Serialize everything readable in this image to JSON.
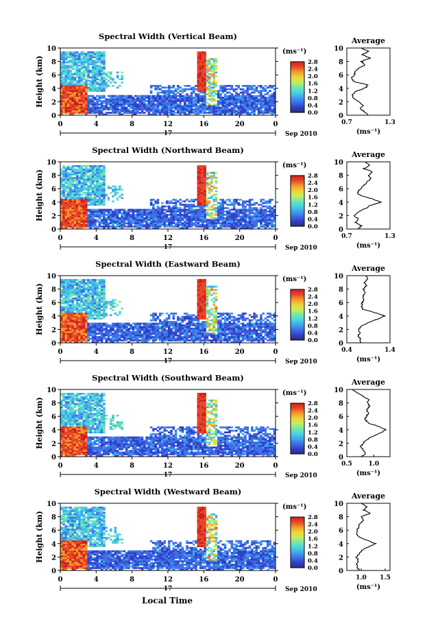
{
  "figure": {
    "x_label": "Local Time",
    "date_text": "Sep 2010",
    "day_label": "17",
    "y_label": "Height (km)",
    "cbar_unit_label": "(ms⁻¹)",
    "avg_title": "Average",
    "avg_xlabel": "(ms⁻¹)",
    "colormap": [
      "#2b2f7a",
      "#3040c8",
      "#3f6fe6",
      "#3fa6ee",
      "#48d6e0",
      "#7ae6a8",
      "#c6ee5a",
      "#f0d23a",
      "#f49a28",
      "#e8462a",
      "#cc1f1f"
    ]
  },
  "chart_data": [
    {
      "type": "heatmap",
      "title": "Spectral Width (Vertical Beam)",
      "xlabel": "",
      "ylabel": "Height (km)",
      "xlim": [
        0,
        24
      ],
      "ylim": [
        0,
        10
      ],
      "x_ticks": [
        "0",
        "4",
        "8",
        "12",
        "16",
        "20",
        "0"
      ],
      "y_ticks": [
        "0",
        "2",
        "4",
        "6",
        "8",
        "10"
      ],
      "colorbar": {
        "range": [
          0,
          2.8
        ],
        "ticks": [
          "2.8",
          "2.4",
          "2.0",
          "1.6",
          "1.2",
          "0.8",
          "0.4",
          "0.0"
        ]
      },
      "average_profile": {
        "xlim": [
          0.7,
          1.3
        ],
        "x_ticks": [
          "0.7",
          "1.3"
        ],
        "height": [
          0,
          0.5,
          1,
          1.5,
          2,
          2.5,
          3,
          3.5,
          4,
          4.5,
          5,
          5.5,
          6,
          6.5,
          7,
          7.5,
          8,
          8.5,
          9,
          9.5,
          10
        ],
        "width": [
          1.0,
          0.95,
          0.88,
          0.93,
          0.86,
          0.8,
          0.78,
          0.82,
          0.95,
          1.0,
          0.8,
          0.76,
          0.8,
          0.82,
          0.86,
          0.96,
          0.9,
          1.02,
          0.92,
          1.0,
          0.9
        ]
      }
    },
    {
      "type": "heatmap",
      "title": "Spectral Width (Northward Beam)",
      "xlabel": "",
      "ylabel": "Height (km)",
      "xlim": [
        0,
        24
      ],
      "ylim": [
        0,
        10
      ],
      "x_ticks": [
        "0",
        "4",
        "8",
        "12",
        "16",
        "20",
        "0"
      ],
      "y_ticks": [
        "0",
        "2",
        "4",
        "6",
        "8",
        "10"
      ],
      "colorbar": {
        "range": [
          0,
          2.8
        ],
        "ticks": [
          "2.8",
          "2.4",
          "2.0",
          "1.6",
          "1.2",
          "0.8",
          "0.4",
          "0.0"
        ]
      },
      "average_profile": {
        "xlim": [
          0.7,
          1.3
        ],
        "x_ticks": [
          "0.7",
          "1.3"
        ],
        "height": [
          0,
          0.5,
          1,
          1.5,
          2,
          2.5,
          3,
          3.5,
          4,
          4.5,
          5,
          5.5,
          6,
          6.5,
          7,
          7.5,
          8,
          8.5,
          9,
          9.5,
          10
        ],
        "width": [
          0.85,
          0.9,
          0.82,
          0.86,
          0.8,
          0.86,
          0.95,
          1.02,
          1.18,
          1.05,
          0.88,
          0.84,
          0.9,
          0.94,
          0.98,
          1.04,
          1.0,
          1.06,
          0.94,
          1.02,
          0.96
        ]
      }
    },
    {
      "type": "heatmap",
      "title": "Spectral Width (Eastward Beam)",
      "xlabel": "",
      "ylabel": "Height (km)",
      "xlim": [
        0,
        24
      ],
      "ylim": [
        0,
        10
      ],
      "x_ticks": [
        "0",
        "4",
        "8",
        "12",
        "16",
        "20",
        "0"
      ],
      "y_ticks": [
        "0",
        "2",
        "4",
        "6",
        "8",
        "10"
      ],
      "colorbar": {
        "range": [
          0,
          2.8
        ],
        "ticks": [
          "2.8",
          "2.4",
          "2.0",
          "1.6",
          "1.2",
          "0.8",
          "0.4",
          "0.0"
        ]
      },
      "average_profile": {
        "xlim": [
          0.4,
          1.4
        ],
        "x_ticks": [
          "0.4",
          "1.4"
        ],
        "height": [
          0,
          0.5,
          1,
          1.5,
          2,
          2.5,
          3,
          3.5,
          4,
          4.5,
          5,
          5.5,
          6,
          6.5,
          7,
          7.5,
          8,
          8.5,
          9,
          9.5,
          10
        ],
        "width": [
          0.7,
          0.72,
          0.66,
          0.7,
          0.68,
          0.74,
          0.9,
          1.1,
          1.28,
          1.05,
          0.78,
          0.74,
          0.76,
          0.8,
          0.78,
          0.82,
          0.78,
          0.86,
          0.8,
          0.9,
          0.84
        ]
      }
    },
    {
      "type": "heatmap",
      "title": "Spectral Width (Southward Beam)",
      "xlabel": "",
      "ylabel": "Height (km)",
      "xlim": [
        0,
        24
      ],
      "ylim": [
        0,
        10
      ],
      "x_ticks": [
        "0",
        "4",
        "8",
        "12",
        "16",
        "20",
        "0"
      ],
      "y_ticks": [
        "0",
        "2",
        "4",
        "6",
        "8",
        "10"
      ],
      "colorbar": {
        "range": [
          0,
          2.8
        ],
        "ticks": [
          "2.8",
          "2.4",
          "2.0",
          "1.6",
          "1.2",
          "0.8",
          "0.4",
          "0.0"
        ]
      },
      "average_profile": {
        "xlim": [
          0.5,
          1.3
        ],
        "x_ticks": [
          "0.5",
          "1.0"
        ],
        "height": [
          0,
          0.5,
          1,
          1.5,
          2,
          2.5,
          3,
          3.5,
          4,
          4.5,
          5,
          5.5,
          6,
          6.5,
          7,
          7.5,
          8,
          8.5,
          9,
          9.5,
          10
        ],
        "width": [
          0.78,
          0.84,
          0.8,
          0.76,
          0.8,
          0.86,
          0.98,
          1.12,
          1.22,
          1.08,
          0.9,
          0.84,
          0.86,
          0.9,
          0.86,
          0.92,
          0.88,
          0.9,
          0.8,
          0.7,
          0.6
        ]
      }
    },
    {
      "type": "heatmap",
      "title": "Spectral Width (Westward Beam)",
      "xlabel": "Local Time",
      "ylabel": "Height (km)",
      "xlim": [
        0,
        24
      ],
      "ylim": [
        0,
        10
      ],
      "x_ticks": [
        "0",
        "4",
        "8",
        "12",
        "16",
        "20",
        "0"
      ],
      "y_ticks": [
        "0",
        "2",
        "4",
        "6",
        "8",
        "10"
      ],
      "colorbar": {
        "range": [
          0,
          2.8
        ],
        "ticks": [
          "2.8",
          "2.4",
          "2.0",
          "1.6",
          "1.2",
          "0.8",
          "0.4",
          "0.0"
        ]
      },
      "average_profile": {
        "xlim": [
          0.7,
          1.6
        ],
        "x_ticks": [
          "1.0",
          "1.5"
        ],
        "height": [
          0,
          0.5,
          1,
          1.5,
          2,
          2.5,
          3,
          3.5,
          4,
          4.5,
          5,
          5.5,
          6,
          6.5,
          7,
          7.5,
          8,
          8.5,
          9,
          9.5,
          10
        ],
        "width": [
          0.96,
          0.92,
          0.9,
          0.94,
          0.9,
          0.96,
          1.02,
          1.14,
          1.3,
          1.12,
          0.96,
          0.9,
          0.92,
          0.94,
          0.98,
          1.04,
          1.0,
          1.18,
          1.06,
          1.12,
          1.0
        ]
      }
    }
  ]
}
